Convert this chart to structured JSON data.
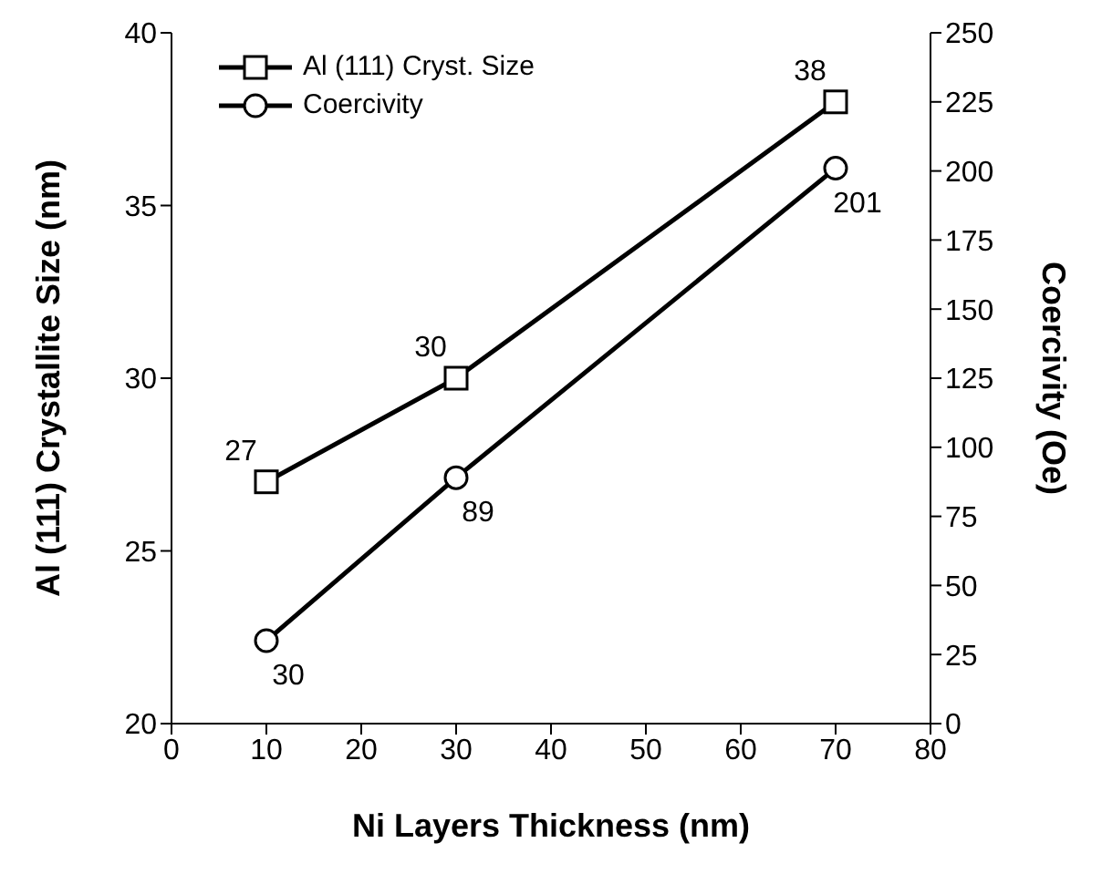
{
  "chart_data": {
    "type": "line",
    "xlabel": "Ni Layers Thickness (nm)",
    "ylabel": "Al (111) Crystallite Size (nm)",
    "y2label": "Coercivity (Oe)",
    "x": [
      10,
      30,
      70
    ],
    "series": [
      {
        "name": "Al (111) Cryst. Size",
        "color": "#000000",
        "values": [
          27,
          30,
          38
        ],
        "marker": "square"
      },
      {
        "name": "Coercivity",
        "color": "#000000",
        "values": [
          30,
          89,
          201
        ],
        "marker": "circle",
        "axis": "y2"
      }
    ],
    "xlim": [
      0,
      80
    ],
    "xticks": [
      0,
      10,
      20,
      30,
      40,
      50,
      60,
      70,
      80
    ],
    "ylim": [
      20,
      40
    ],
    "yticks": [
      20,
      25,
      30,
      35,
      40
    ],
    "y2lim": [
      0,
      250
    ],
    "y2ticks": [
      0,
      25,
      50,
      75,
      100,
      125,
      150,
      175,
      200,
      225,
      250
    ],
    "grid": false,
    "legend": "top left",
    "data_labels": true,
    "line_style": "solid"
  }
}
